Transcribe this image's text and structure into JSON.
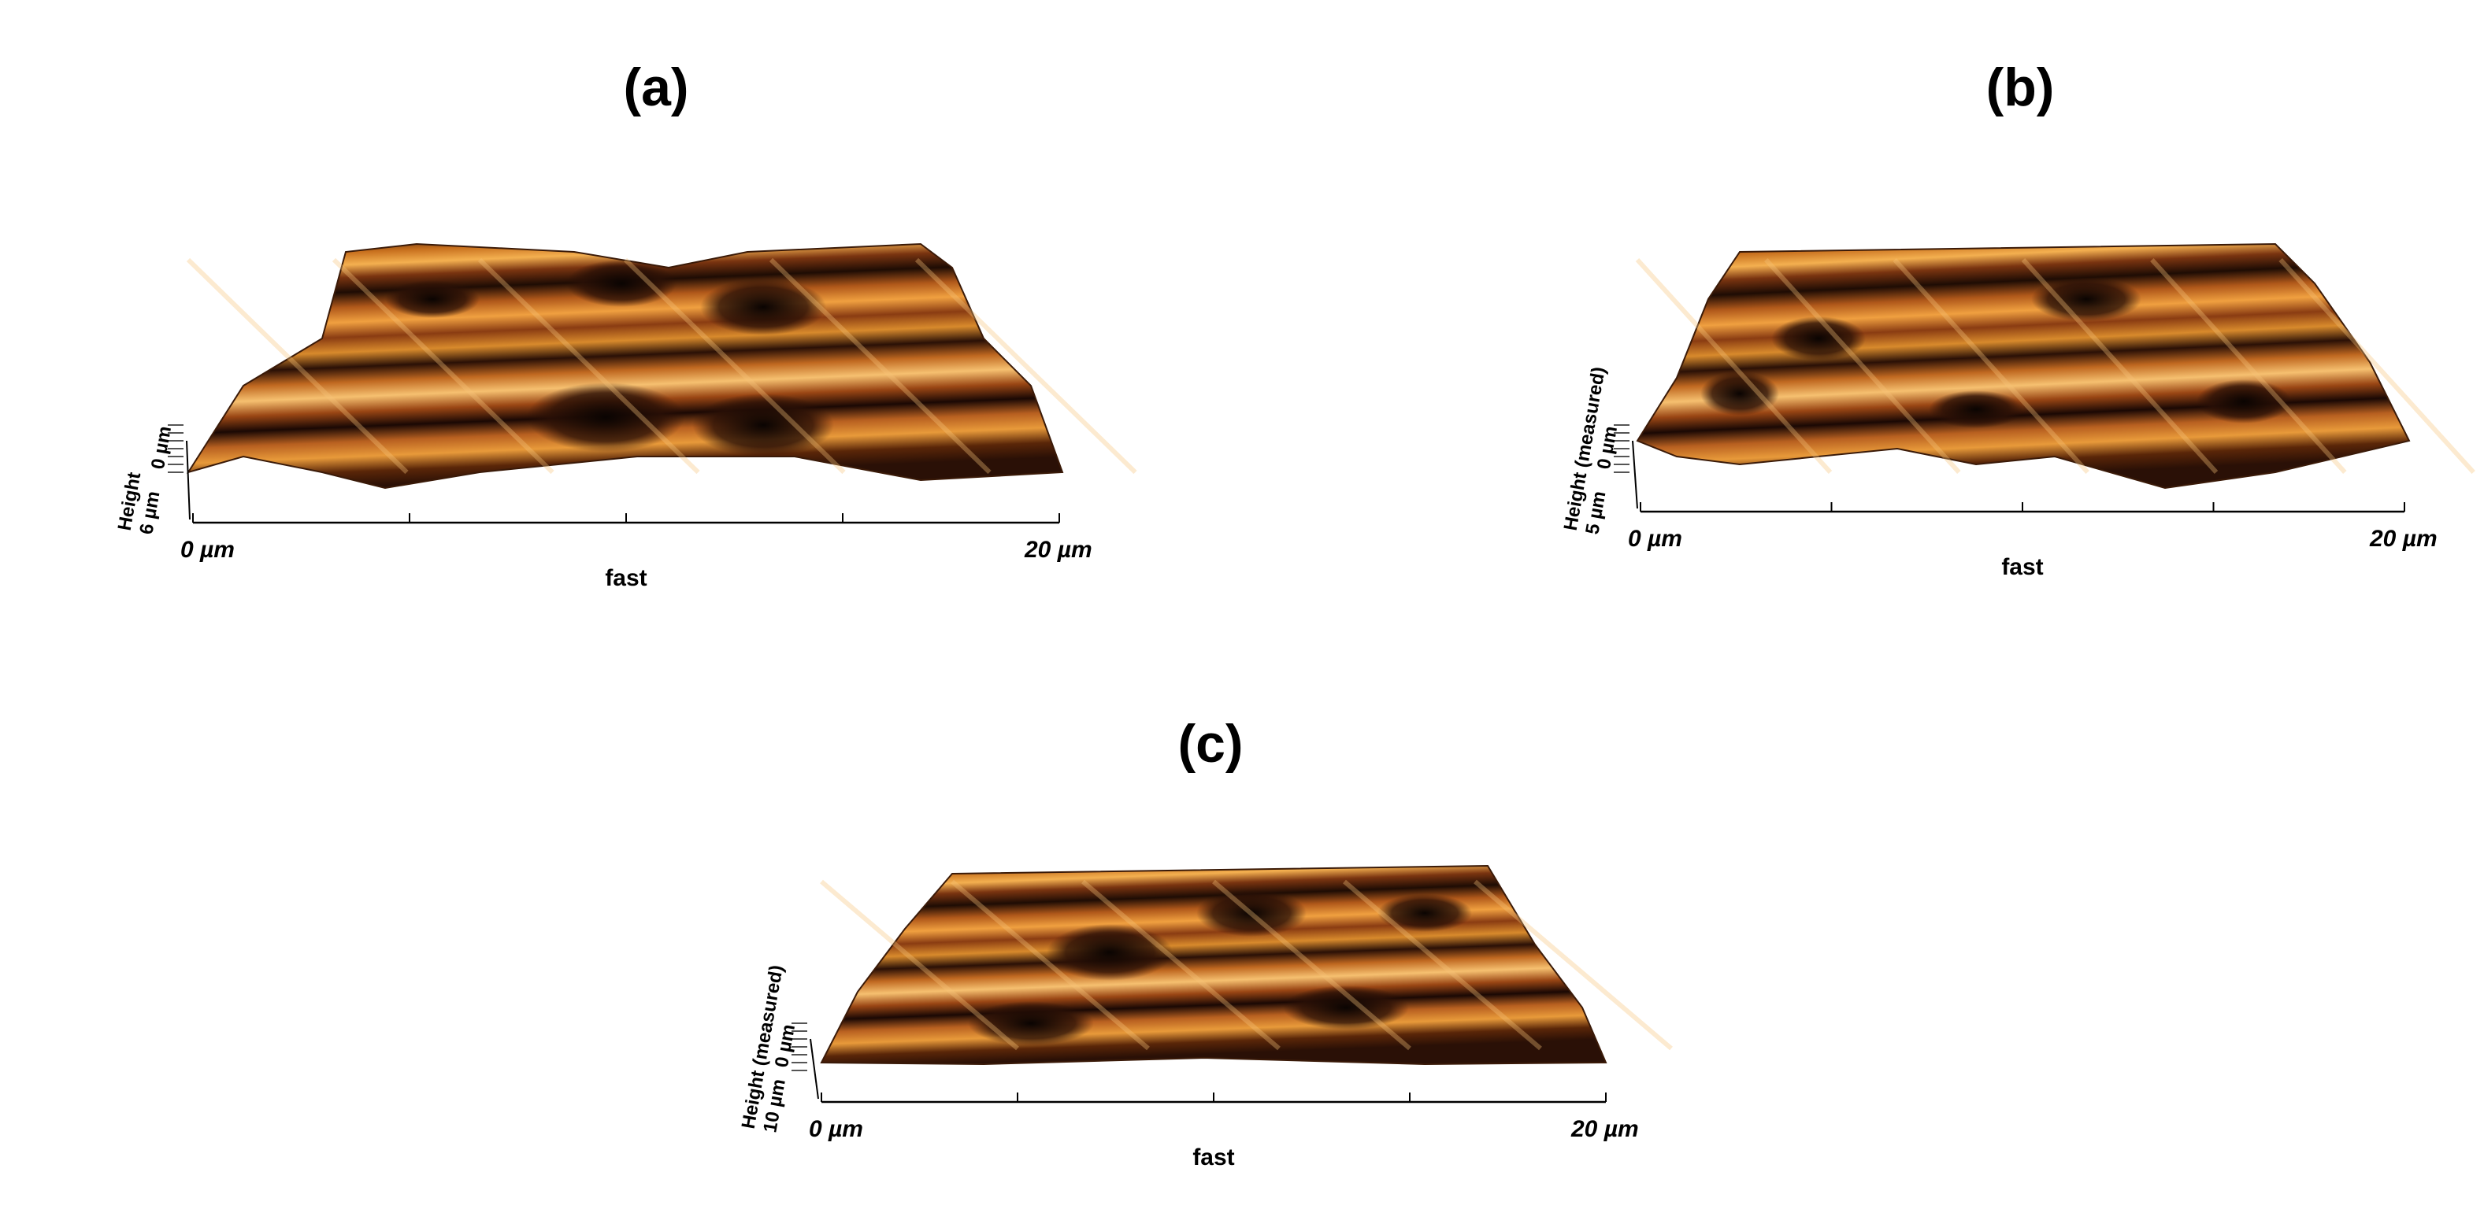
{
  "panels": [
    {
      "label": "(a)",
      "x_axis": {
        "start": "0 µm",
        "end": "20 µm",
        "name": "fast"
      },
      "height_axis": {
        "name": "Height",
        "max": "6 µm",
        "min": "0 µm"
      }
    },
    {
      "label": "(b)",
      "x_axis": {
        "start": "0 µm",
        "end": "20 µm",
        "name": "fast"
      },
      "height_axis": {
        "name": "Height (measured)",
        "max": "5 µm",
        "min": "0 µm"
      }
    },
    {
      "label": "(c)",
      "x_axis": {
        "start": "0 µm",
        "end": "20 µm",
        "name": "fast"
      },
      "height_axis": {
        "name": "Height (measured)",
        "max": "10 µm",
        "min": "0 µm"
      }
    }
  ]
}
